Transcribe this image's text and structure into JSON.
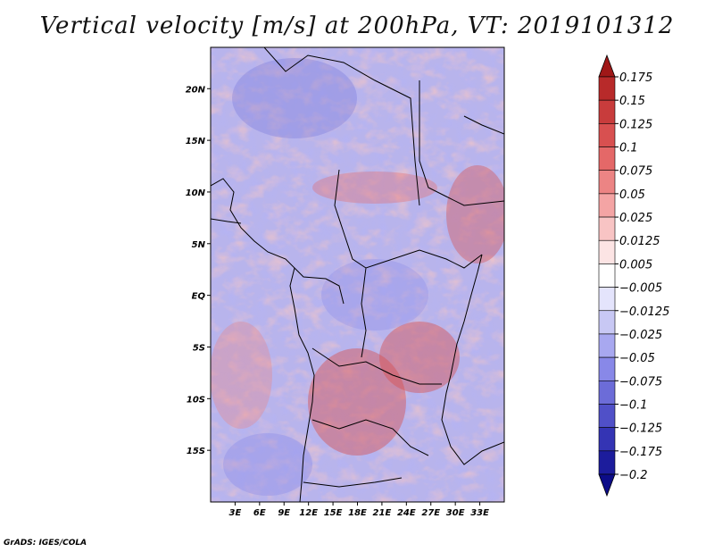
{
  "title": "Vertical velocity [m/s] at 200hPa, VT: 2019101312",
  "credit": "GrADS: IGES/COLA",
  "map": {
    "lon_range": [
      0,
      36
    ],
    "lat_range": [
      -20,
      24
    ],
    "x_ticks": [
      "3E",
      "6E",
      "9E",
      "12E",
      "15E",
      "18E",
      "21E",
      "24E",
      "27E",
      "30E",
      "33E"
    ],
    "y_ticks": [
      "20N",
      "15N",
      "10N",
      "5N",
      "EQ",
      "5S",
      "10S",
      "15S"
    ],
    "field_description": "vertical velocity"
  },
  "colorbar": {
    "labels": [
      "0.175",
      "0.15",
      "0.125",
      "0.1",
      "0.075",
      "0.05",
      "0.025",
      "0.0125",
      "0.005",
      "-0.005",
      "-0.0125",
      "-0.025",
      "-0.05",
      "-0.075",
      "-0.1",
      "-0.125",
      "-0.175",
      "-0.2"
    ],
    "colors": [
      "#a01818",
      "#b82a2a",
      "#c83c3c",
      "#d85050",
      "#e46868",
      "#ec8484",
      "#f4a4a4",
      "#f8c4c4",
      "#fce4e4",
      "#ffffff",
      "#e4e4fc",
      "#c8c8f4",
      "#a8a8f0",
      "#8888e8",
      "#6c6cd8",
      "#5050c8",
      "#3434b4",
      "#1c1c9c",
      "#0c0c88"
    ]
  }
}
